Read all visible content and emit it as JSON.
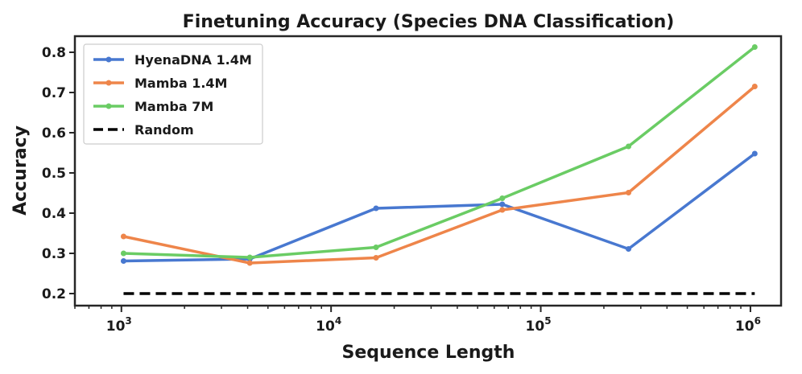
{
  "chart_data": {
    "type": "line",
    "title": "Finetuning Accuracy (Species DNA Classification)",
    "xlabel": "Sequence Length",
    "ylabel": "Accuracy",
    "xscale": "log",
    "xlim": [
      600,
      1400000
    ],
    "ylim": [
      0.17,
      0.84
    ],
    "x_ticks": [
      {
        "value": 1000,
        "base": "10",
        "exp": "3"
      },
      {
        "value": 10000,
        "base": "10",
        "exp": "4"
      },
      {
        "value": 100000,
        "base": "10",
        "exp": "5"
      },
      {
        "value": 1000000,
        "base": "10",
        "exp": "6"
      }
    ],
    "y_ticks": [
      {
        "value": 0.2,
        "label": "0.2"
      },
      {
        "value": 0.3,
        "label": "0.3"
      },
      {
        "value": 0.4,
        "label": "0.4"
      },
      {
        "value": 0.5,
        "label": "0.5"
      },
      {
        "value": 0.6,
        "label": "0.6"
      },
      {
        "value": 0.7,
        "label": "0.7"
      },
      {
        "value": 0.8,
        "label": "0.8"
      }
    ],
    "x": [
      1024,
      4096,
      16384,
      65536,
      262144,
      1048576
    ],
    "series": [
      {
        "name": "HyenaDNA 1.4M",
        "color": "#4878d0",
        "values": [
          0.281,
          0.286,
          0.412,
          0.422,
          0.311,
          0.548
        ]
      },
      {
        "name": "Mamba 1.4M",
        "color": "#ee854a",
        "values": [
          0.342,
          0.276,
          0.289,
          0.408,
          0.451,
          0.715
        ]
      },
      {
        "name": "Mamba 7M",
        "color": "#6acc64",
        "values": [
          0.3,
          0.29,
          0.315,
          0.437,
          0.566,
          0.813
        ]
      }
    ],
    "reference_line": {
      "name": "Random",
      "value": 0.2,
      "color": "#000000",
      "style": "dashed"
    },
    "legend": {
      "position": "top-left",
      "entries": [
        "HyenaDNA 1.4M",
        "Mamba 1.4M",
        "Mamba 7M",
        "Random"
      ]
    },
    "grid": false
  }
}
